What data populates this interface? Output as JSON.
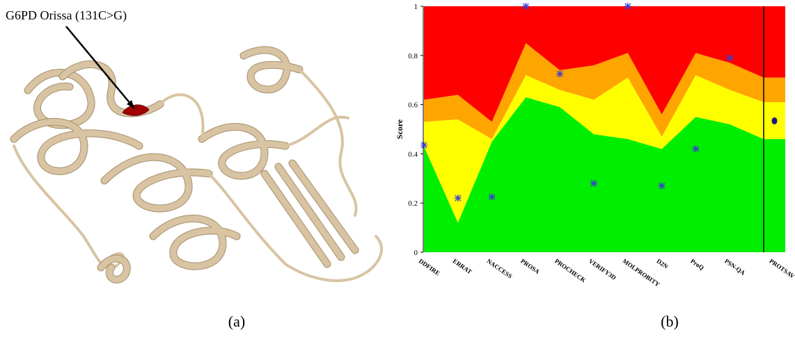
{
  "panel_a": {
    "annotation": "G6PD Orissa (131C>G)",
    "label": "(a)"
  },
  "chart_data": {
    "type": "stacked-area",
    "label": "(b)",
    "ylabel": "Score",
    "categories": [
      "DDFIRE",
      "ERRAT",
      "NACCESS",
      "PROSA",
      "PROCHECK",
      "VERIFY3D",
      "MOLPROBITY",
      "D2N",
      "ProQ",
      "PSN-QA",
      "PROTSAV"
    ],
    "series": [
      {
        "color": "#00ee00",
        "values": [
          0.43,
          0.12,
          0.45,
          0.63,
          0.59,
          0.48,
          0.46,
          0.42,
          0.55,
          0.52,
          0.46
        ]
      },
      {
        "color": "#ffff00",
        "values": [
          0.1,
          0.42,
          0.01,
          0.09,
          0.07,
          0.14,
          0.25,
          0.05,
          0.17,
          0.14,
          0.15
        ]
      },
      {
        "color": "#ffa500",
        "values": [
          0.09,
          0.1,
          0.07,
          0.13,
          0.08,
          0.14,
          0.1,
          0.09,
          0.09,
          0.11,
          0.1
        ]
      },
      {
        "color": "#ff0000",
        "values": [
          0.38,
          0.36,
          0.47,
          0.15,
          0.26,
          0.24,
          0.19,
          0.44,
          0.19,
          0.23,
          0.29
        ]
      }
    ],
    "points": {
      "color": "#3b3bd6",
      "values": [
        0.435,
        0.22,
        0.225,
        1.0,
        0.725,
        0.28,
        1.0,
        0.27,
        0.42,
        0.79,
        0.534
      ],
      "markers": [
        "star",
        "star",
        "star",
        "star",
        "star",
        "star",
        "star",
        "star",
        "star",
        "star",
        "circle"
      ]
    },
    "ylim": [
      0,
      1
    ],
    "yticks": [
      0,
      0.2,
      0.4,
      0.6,
      0.8,
      1
    ]
  }
}
